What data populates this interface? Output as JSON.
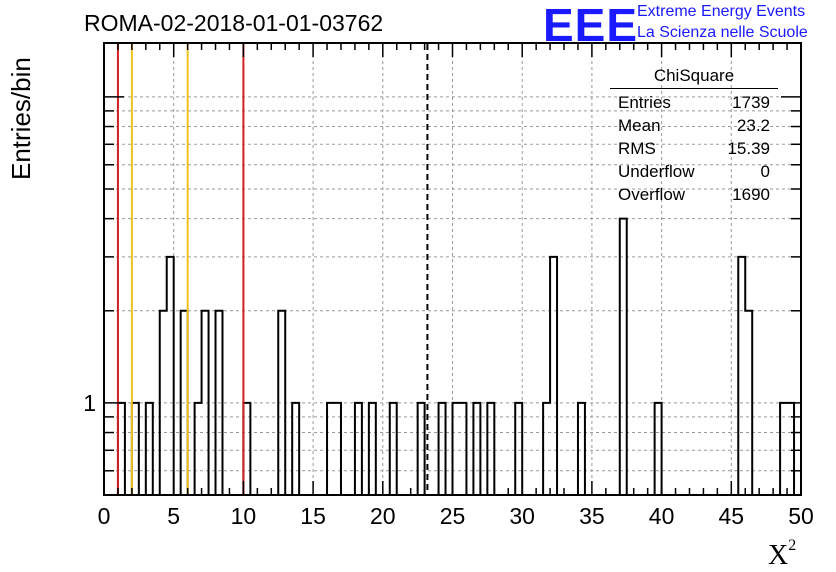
{
  "title": "ROMA-02-2018-01-01-03762",
  "brand": {
    "logo": "EEE",
    "line1": "Extreme Energy Events",
    "line2": "La Scienza nelle Scuole",
    "color": "#1a1aff"
  },
  "stats_box": {
    "header": "ChiSquare",
    "rows": [
      {
        "label": "Entries",
        "value": "1739"
      },
      {
        "label": "Mean",
        "value": "23.2"
      },
      {
        "label": "RMS",
        "value": "15.39"
      },
      {
        "label": "Underflow",
        "value": "0"
      },
      {
        "label": "Overflow",
        "value": "1690"
      }
    ]
  },
  "chart_data": {
    "type": "bar",
    "histogram": true,
    "title": "ROMA-02-2018-01-01-03762",
    "xlabel": "X",
    "xlabel_superscript": "2",
    "ylabel": "Entries/bin",
    "xlim": [
      0,
      50
    ],
    "ylim": [
      0.5,
      15
    ],
    "yscale": "log",
    "bin_width": 0.5,
    "grid": true,
    "legend_position": "top-right",
    "x_ticks": [
      0,
      5,
      10,
      15,
      20,
      25,
      30,
      35,
      40,
      45,
      50
    ],
    "y_tick_labels": [
      {
        "value": 1,
        "label": "1"
      }
    ],
    "bins": [
      {
        "x": 1.0,
        "count": 1
      },
      {
        "x": 2.0,
        "count": 1
      },
      {
        "x": 3.0,
        "count": 1
      },
      {
        "x": 4.0,
        "count": 2
      },
      {
        "x": 4.5,
        "count": 3
      },
      {
        "x": 5.5,
        "count": 2
      },
      {
        "x": 6.5,
        "count": 1
      },
      {
        "x": 7.0,
        "count": 2
      },
      {
        "x": 8.0,
        "count": 2
      },
      {
        "x": 10.0,
        "count": 1
      },
      {
        "x": 12.5,
        "count": 2
      },
      {
        "x": 13.5,
        "count": 1
      },
      {
        "x": 16.0,
        "count": 1
      },
      {
        "x": 16.5,
        "count": 1
      },
      {
        "x": 18.0,
        "count": 1
      },
      {
        "x": 19.0,
        "count": 1
      },
      {
        "x": 20.5,
        "count": 1
      },
      {
        "x": 22.5,
        "count": 1
      },
      {
        "x": 24.0,
        "count": 1
      },
      {
        "x": 25.0,
        "count": 1
      },
      {
        "x": 25.5,
        "count": 1
      },
      {
        "x": 26.5,
        "count": 1
      },
      {
        "x": 27.5,
        "count": 1
      },
      {
        "x": 29.5,
        "count": 1
      },
      {
        "x": 31.5,
        "count": 1
      },
      {
        "x": 32.0,
        "count": 3
      },
      {
        "x": 34.0,
        "count": 1
      },
      {
        "x": 37.0,
        "count": 4
      },
      {
        "x": 39.5,
        "count": 1
      },
      {
        "x": 45.5,
        "count": 3
      },
      {
        "x": 46.0,
        "count": 2
      },
      {
        "x": 48.5,
        "count": 1
      },
      {
        "x": 49.0,
        "count": 1
      }
    ],
    "reference_lines": [
      {
        "x": 1.0,
        "color": "#d42020",
        "style": "solid"
      },
      {
        "x": 2.0,
        "color": "#f0c020",
        "style": "solid"
      },
      {
        "x": 6.0,
        "color": "#f0c020",
        "style": "solid"
      },
      {
        "x": 10.0,
        "color": "#d42020",
        "style": "solid"
      },
      {
        "x": 23.2,
        "color": "#000000",
        "style": "dashed"
      }
    ]
  }
}
